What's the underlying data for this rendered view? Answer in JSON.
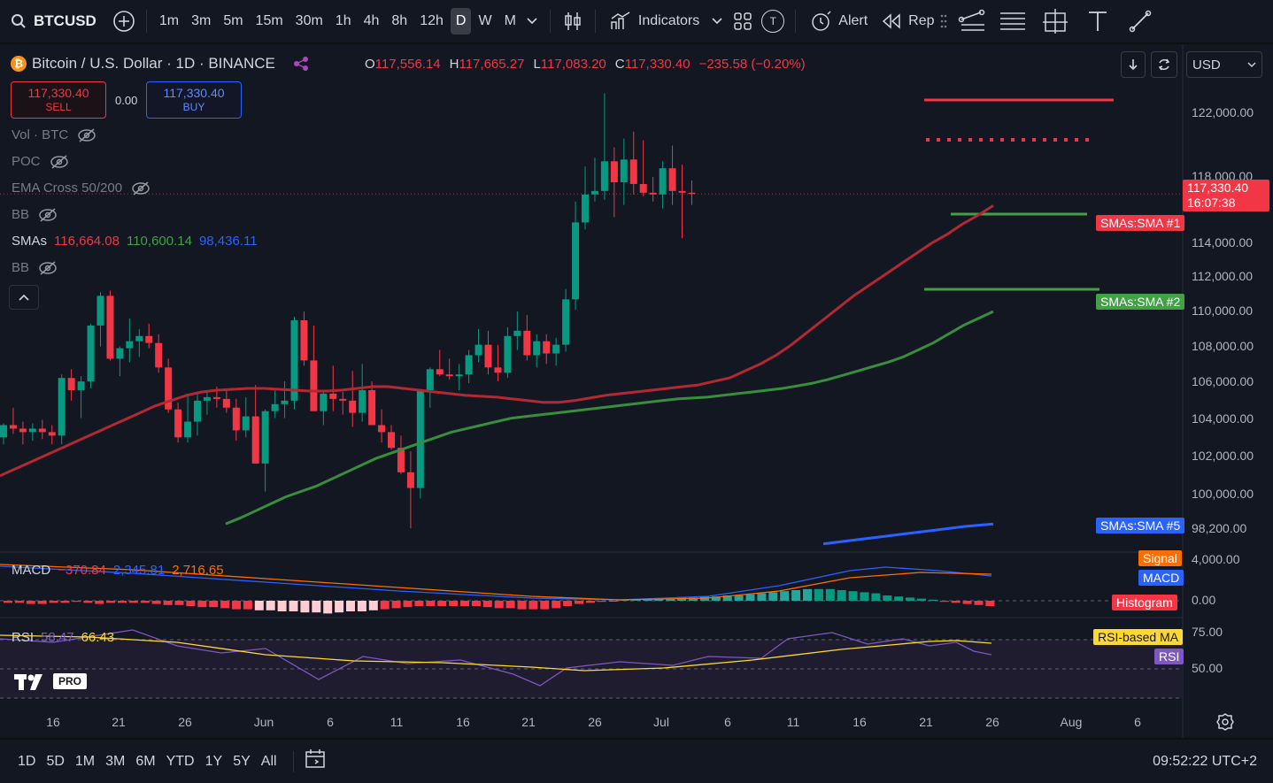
{
  "toolbar": {
    "symbol": "BTCUSD",
    "intervals": [
      "1m",
      "3m",
      "5m",
      "15m",
      "30m",
      "1h",
      "4h",
      "8h",
      "12h",
      "D",
      "W",
      "M"
    ],
    "active_interval": "D",
    "indicators_label": "Indicators",
    "template_badge": "T",
    "alert_label": "Alert",
    "replay_label": "Rep"
  },
  "legend": {
    "btc_glyph": "₿",
    "title": "Bitcoin / U.S. Dollar · 1D · BINANCE",
    "o_key": "O",
    "o_val": "117,556.14",
    "h_key": "H",
    "h_val": "117,665.27",
    "l_key": "L",
    "l_val": "117,083.20",
    "c_key": "C",
    "c_val": "117,330.40",
    "change": "−235.58 (−0.20%)"
  },
  "trade": {
    "sell_price": "117,330.40",
    "sell_label": "SELL",
    "spread": "0.00",
    "buy_price": "117,330.40",
    "buy_label": "BUY"
  },
  "indicators": [
    {
      "name": "Vol · BTC",
      "hidden": true
    },
    {
      "name": "POC",
      "hidden": true
    },
    {
      "name": "EMA Cross 50/200",
      "hidden": true
    },
    {
      "name": "BB",
      "hidden": true
    },
    {
      "name": "SMAs",
      "hidden": false,
      "v1": "116,664.08",
      "v2": "110,600.14",
      "v3": "98,436.11"
    },
    {
      "name": "BB",
      "hidden": true
    }
  ],
  "currency": "USD",
  "price_axis": [
    "122,000.00",
    "118,000.00",
    "114,000.00",
    "112,000.00",
    "110,000.00",
    "108,000.00",
    "106,000.00",
    "104,000.00",
    "102,000.00",
    "100,000.00",
    "98,200.00"
  ],
  "last_price": {
    "price": "117,330.40",
    "countdown": "16:07:38"
  },
  "tags": {
    "sma1": "SMAs:SMA #1",
    "sma2": "SMAs:SMA #2",
    "sma5": "SMAs:SMA #5",
    "signal": "Signal",
    "macd": "MACD",
    "histogram": "Histogram",
    "rsi_ma": "RSI-based MA",
    "rsi": "RSI"
  },
  "macd": {
    "label": "MACD",
    "v1": "−370.84",
    "v2": "2,345.81",
    "v3": "2,716.65",
    "axis_top": "4,000.00",
    "axis_zero": "0.00"
  },
  "rsi": {
    "label": "RSI",
    "v1": "58.47",
    "v2": "66.43",
    "axis_top": "75.00",
    "axis_mid": "50.00"
  },
  "watermark": "PRO",
  "dates": [
    "16",
    "21",
    "26",
    "Jun",
    "6",
    "11",
    "16",
    "21",
    "26",
    "Jul",
    "6",
    "11",
    "16",
    "21",
    "26",
    "Aug",
    "6"
  ],
  "ranges": [
    "1D",
    "5D",
    "1M",
    "3M",
    "6M",
    "YTD",
    "1Y",
    "5Y",
    "All"
  ],
  "clock": "09:52:22 UTC+2",
  "colors": {
    "up": "#089981",
    "down": "#f23645",
    "sma1": "#b22833",
    "sma2": "#388e3c",
    "sma5": "#2962ff",
    "bg": "#131722"
  },
  "chart_data": {
    "type": "candlestick",
    "series": [
      {
        "name": "SMAs:SMA #1",
        "values": [
          101200,
          101600,
          102000,
          102400,
          102800,
          103200,
          103600,
          104000,
          104400,
          104800,
          105200,
          105500,
          105800,
          106000,
          106100,
          106150,
          106200,
          106200,
          106150,
          106100,
          106050,
          106050,
          106100,
          106200,
          106300,
          106300,
          106200,
          106100,
          106000,
          105900,
          105800,
          105750,
          105700,
          105600,
          105500,
          105400,
          105400,
          105500,
          105650,
          105800,
          105900,
          106000,
          106100,
          106200,
          106300,
          106400,
          106600,
          106800,
          107200,
          107600,
          108100,
          108700,
          109400,
          110100,
          110800,
          111500,
          112100,
          112700,
          113300,
          113900,
          114500,
          115000,
          115600,
          116100,
          116664.08
        ]
      },
      {
        "name": "SMAs:SMA #2",
        "values": [
          null,
          null,
          null,
          null,
          null,
          null,
          null,
          null,
          null,
          null,
          null,
          null,
          null,
          null,
          null,
          98450,
          98800,
          99200,
          99600,
          100000,
          100300,
          100600,
          101000,
          101400,
          101800,
          102200,
          102500,
          102800,
          103100,
          103400,
          103700,
          103900,
          104100,
          104300,
          104500,
          104600,
          104700,
          104800,
          104900,
          105000,
          105100,
          105200,
          105300,
          105400,
          105500,
          105600,
          105650,
          105700,
          105800,
          105900,
          106000,
          106100,
          106200,
          106350,
          106500,
          106700,
          106950,
          107200,
          107450,
          107700,
          108000,
          108400,
          108800,
          109300,
          109800,
          110200,
          110600.14
        ]
      },
      {
        "name": "SMAs:SMA #5",
        "values": [
          97300,
          97500,
          97700,
          97900,
          98100,
          98300,
          98436.11
        ]
      }
    ]
  }
}
